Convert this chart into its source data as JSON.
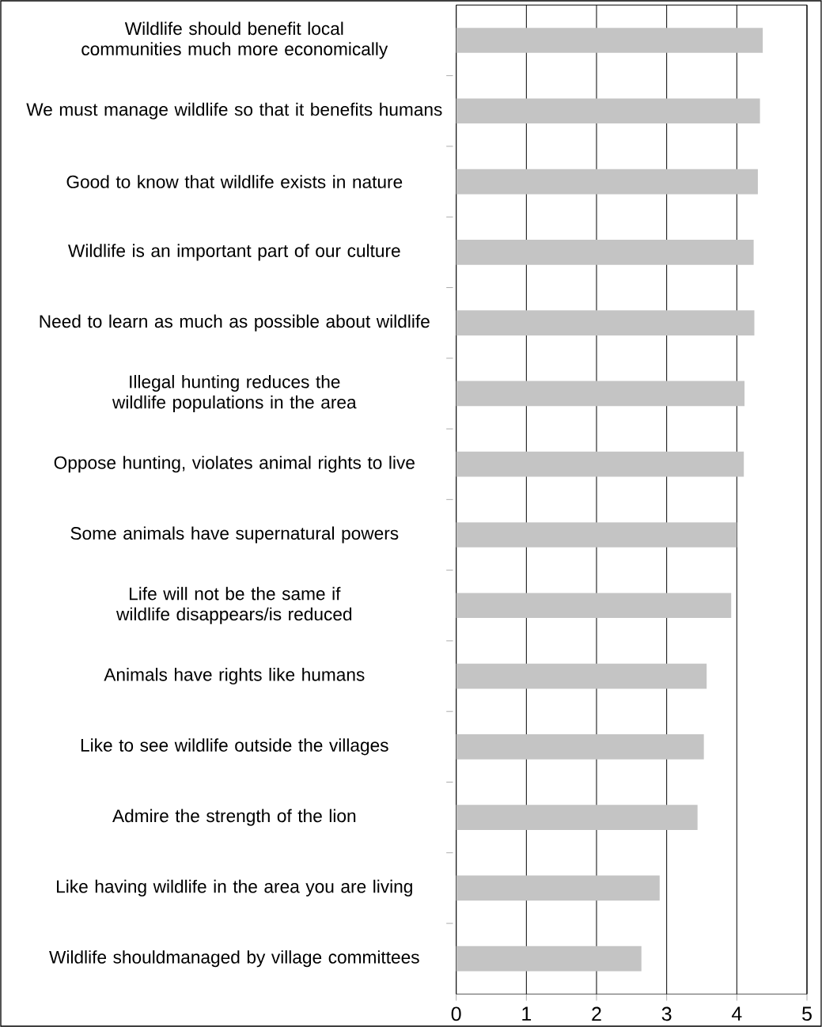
{
  "chart_data": {
    "type": "bar",
    "orientation": "horizontal",
    "categories": [
      "Wildlife should benefit local communities much more economically",
      "We must manage wildlife so that it benefits humans",
      "Good to know that wildlife exists in nature",
      "Wildlife is an important part of our culture",
      "Need to learn as much as possible about wildlife",
      "Illegal hunting reduces the wildlife populations in the area",
      "Oppose hunting, violates animal rights to live",
      "Some animals have supernatural powers",
      "Life will not be the same if wildlife disappears/is reduced",
      "Animals have rights like humans",
      "Like to see wildlife outside the villages",
      "Admire the strength of the lion",
      "Like having wildlife in the area you are living",
      "Wildlife shouldmanaged by village committees"
    ],
    "values": [
      4.37,
      4.33,
      4.3,
      4.24,
      4.25,
      4.11,
      4.1,
      4.0,
      3.92,
      3.57,
      3.53,
      3.44,
      2.9,
      2.64
    ],
    "color": "#c4c4c4",
    "xlim": [
      0,
      5
    ],
    "xticks": [
      0,
      1,
      2,
      3,
      4,
      5
    ],
    "grid": "x"
  }
}
